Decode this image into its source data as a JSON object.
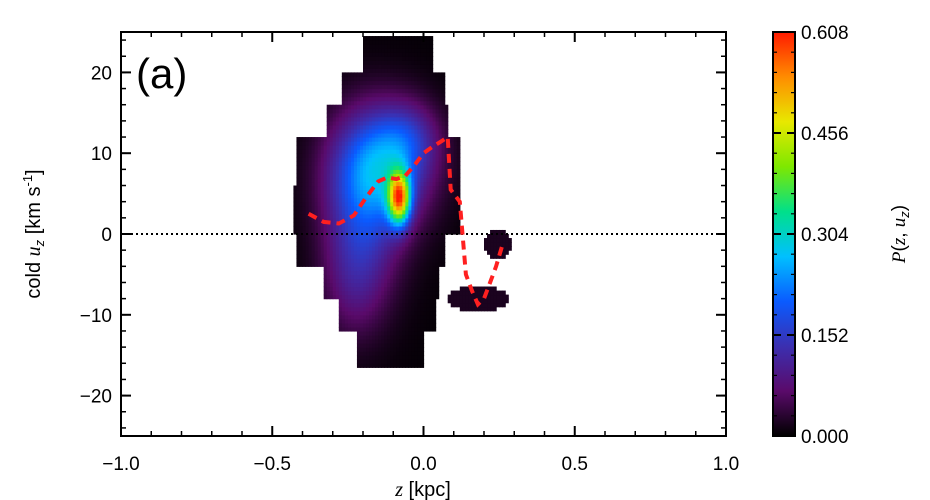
{
  "chart_data": {
    "type": "heatmap",
    "panel_label": "(a)",
    "xlabel": "z [kpc]",
    "ylabel": "cold u_z [km s^-1]",
    "xlim": [
      -1.0,
      1.0
    ],
    "ylim": [
      -25,
      25
    ],
    "x_ticks": [
      "-1.0",
      "-0.5",
      "0.0",
      "0.5",
      "1.0"
    ],
    "y_ticks": [
      "-20",
      "-10",
      "0",
      "10",
      "20"
    ],
    "colorbar": {
      "label": "P(z,u_z)",
      "range": [
        0.0,
        0.608
      ],
      "ticks": [
        "0.000",
        "0.152",
        "0.304",
        "0.456",
        "0.608"
      ],
      "colormap": [
        "#000000",
        "#5a0a6a",
        "#3b2fb0",
        "#0a5bff",
        "#00c0ff",
        "#00e08a",
        "#7ee800",
        "#e8e800",
        "#ff8c00",
        "#ff1a00"
      ]
    },
    "density_blobs": [
      {
        "x": -0.08,
        "y": 4.5,
        "sx": 0.025,
        "sy": 2.2,
        "amp": 0.44
      },
      {
        "x": -0.14,
        "y": 8.5,
        "sx": 0.11,
        "sy": 5.0,
        "amp": 0.21
      },
      {
        "x": -0.2,
        "y": 1.5,
        "sx": 0.09,
        "sy": 7.0,
        "amp": 0.11
      },
      {
        "x": -0.23,
        "y": -6.0,
        "sx": 0.07,
        "sy": 5.0,
        "amp": 0.05
      },
      {
        "x": -0.05,
        "y": 12.0,
        "sx": 0.07,
        "sy": 3.0,
        "amp": 0.07
      }
    ],
    "support_regions": [
      {
        "x0": -0.43,
        "x1": 0.26,
        "y0": -16.5,
        "y1": 24.5,
        "shape": "main"
      },
      {
        "x0": 0.19,
        "x1": 0.3,
        "y0": -3.0,
        "y1": 0.5,
        "shape": "ellipse"
      }
    ],
    "zero_line": {
      "y": 0,
      "style": "dotted"
    },
    "series": [
      {
        "style": "dashed",
        "color": "#ff2020",
        "x": [
          -0.38,
          -0.33,
          -0.28,
          -0.23,
          -0.19,
          -0.15,
          -0.12,
          -0.09,
          -0.06,
          -0.03,
          0.0,
          0.03,
          0.06,
          0.08,
          0.09,
          0.12,
          0.14,
          0.16,
          0.18,
          0.2,
          0.22,
          0.24,
          0.26
        ],
        "y": [
          2.5,
          1.5,
          1.3,
          2.3,
          4.5,
          6.5,
          7.0,
          6.8,
          7.2,
          8.5,
          10.0,
          10.8,
          11.5,
          12.0,
          5.5,
          4.0,
          -5.0,
          -7.0,
          -8.7,
          -8.0,
          -6.0,
          -4.0,
          -1.5
        ]
      }
    ]
  }
}
